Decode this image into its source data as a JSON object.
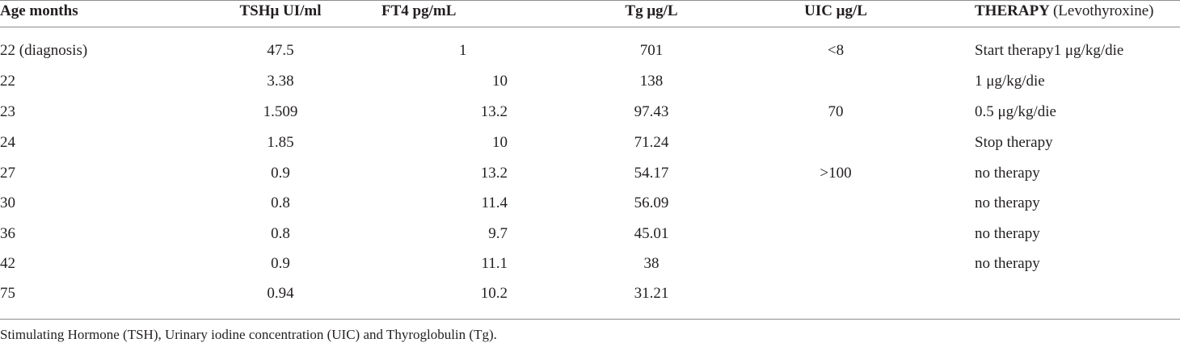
{
  "table": {
    "headers": {
      "age": "Age months",
      "tsh": "TSHμ UI/ml",
      "ft4": "FT4 pg/mL",
      "tg": "Tg μg/L",
      "uic": "UIC μg/L",
      "therapy": "THERAPY",
      "therapy_note": "(Levothyroxine)"
    },
    "rows": [
      {
        "age": "22 (diagnosis)",
        "tsh": "47.5",
        "ft4": "1",
        "tg": "701",
        "uic": "<8",
        "therapy": "Start therapy1 μg/kg/die"
      },
      {
        "age": "22",
        "tsh": "3.38",
        "ft4": "10",
        "tg": "138",
        "uic": "",
        "therapy": "1 μg/kg/die"
      },
      {
        "age": "23",
        "tsh": "1.509",
        "ft4": "13.2",
        "tg": "97.43",
        "uic": "70",
        "therapy": "0.5 μg/kg/die"
      },
      {
        "age": "24",
        "tsh": "1.85",
        "ft4": "10",
        "tg": "71.24",
        "uic": "",
        "therapy": "Stop therapy"
      },
      {
        "age": "27",
        "tsh": "0.9",
        "ft4": "13.2",
        "tg": "54.17",
        "uic": ">100",
        "therapy": "no therapy"
      },
      {
        "age": "30",
        "tsh": "0.8",
        "ft4": "11.4",
        "tg": "56.09",
        "uic": "",
        "therapy": "no therapy"
      },
      {
        "age": "36",
        "tsh": "0.8",
        "ft4": "9.7",
        "tg": "45.01",
        "uic": "",
        "therapy": "no therapy"
      },
      {
        "age": "42",
        "tsh": "0.9",
        "ft4": "11.1",
        "tg": "38",
        "uic": "",
        "therapy": "no therapy"
      },
      {
        "age": "75",
        "tsh": "0.94",
        "ft4": "10.2",
        "tg": "31.21",
        "uic": "",
        "therapy": ""
      }
    ]
  },
  "footnote": "Stimulating Hormone (TSH), Urinary iodine concentration (UIC) and Thyroglobulin (Tg)."
}
